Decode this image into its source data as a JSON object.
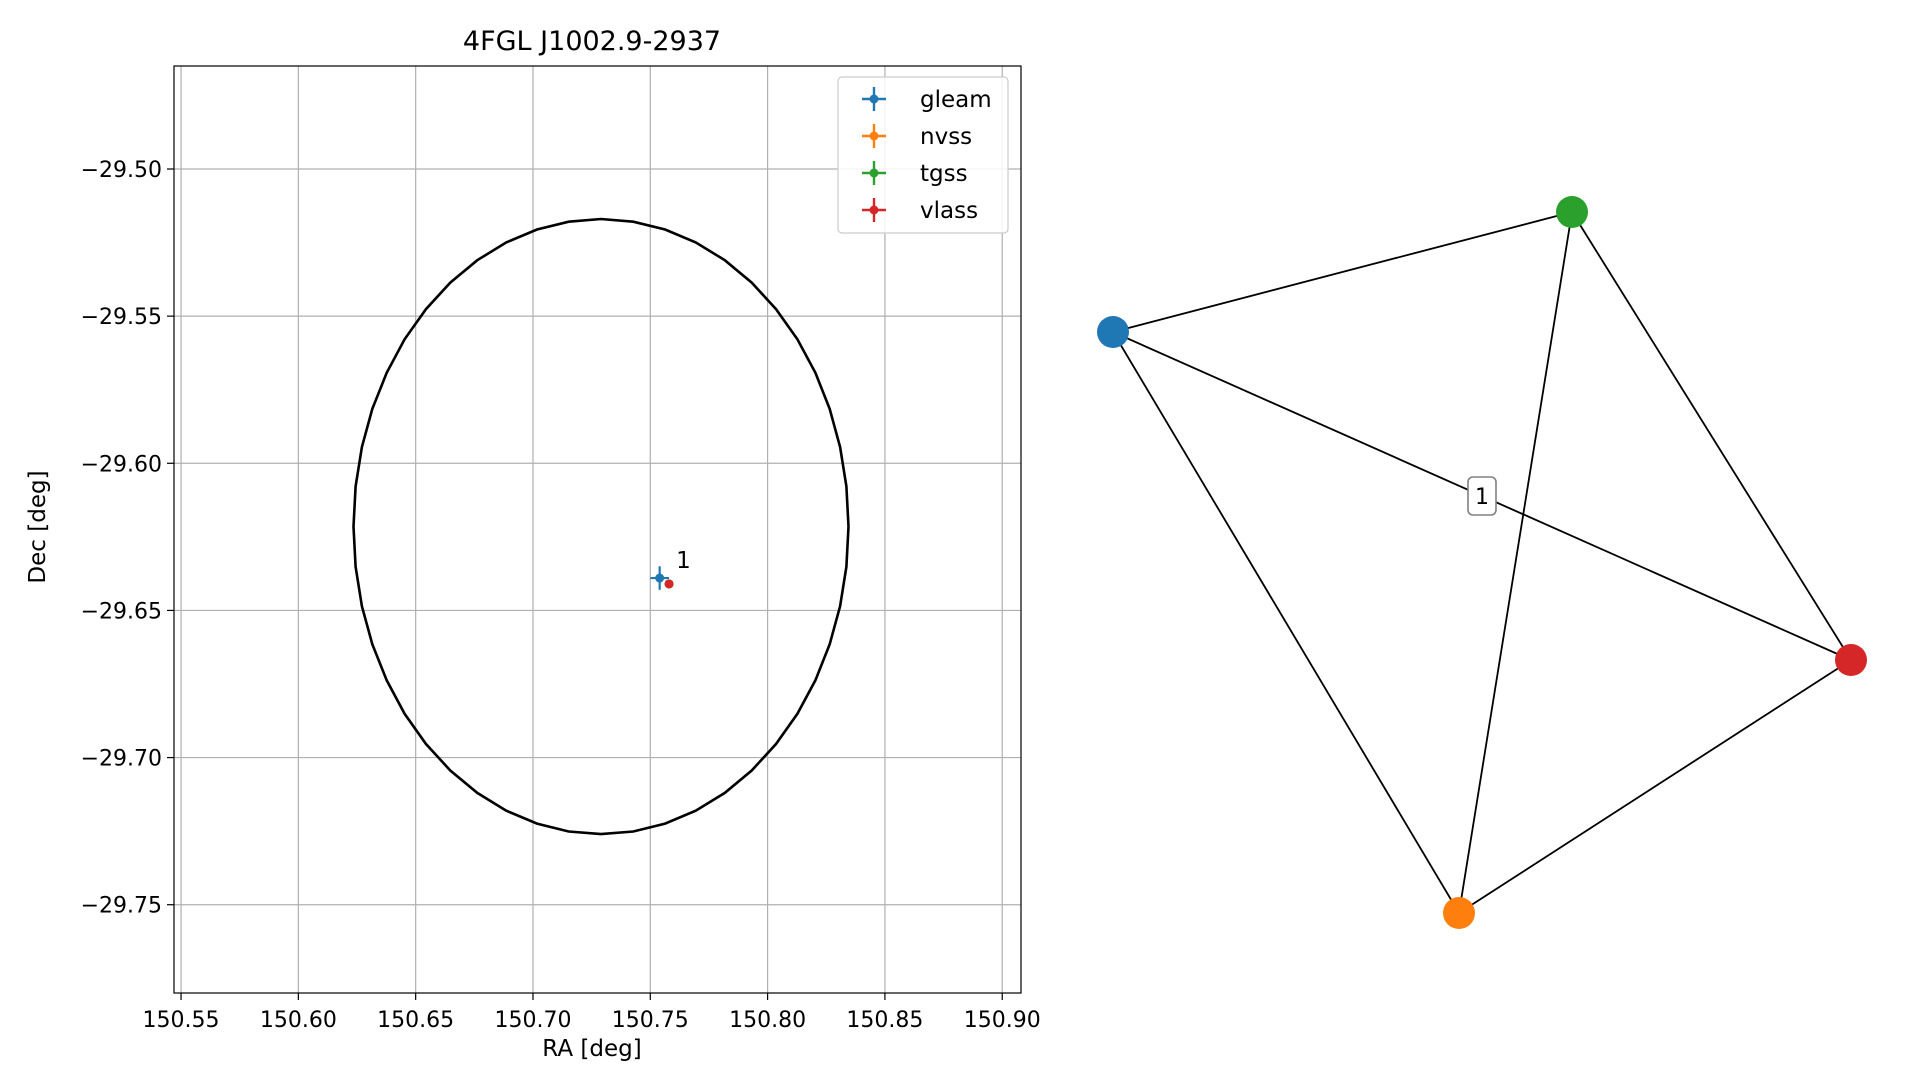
{
  "chart_data": [
    {
      "type": "scatter",
      "title": "4FGL J1002.9-2937",
      "xlabel": "RA [deg]",
      "ylabel": "Dec [deg]",
      "xlim": [
        150.547,
        150.908
      ],
      "ylim": [
        -29.78,
        -29.465
      ],
      "xticks": [
        150.55,
        150.6,
        150.65,
        150.7,
        150.75,
        150.8,
        150.85,
        150.9
      ],
      "xtick_labels": [
        "150.55",
        "150.60",
        "150.65",
        "150.70",
        "150.75",
        "150.80",
        "150.85",
        "150.90"
      ],
      "yticks": [
        -29.5,
        -29.55,
        -29.6,
        -29.65,
        -29.7,
        -29.75
      ],
      "ytick_labels": [
        "−29.50",
        "−29.55",
        "−29.60",
        "−29.65",
        "−29.70",
        "−29.75"
      ],
      "grid": true,
      "legend_position": "top-right",
      "ellipse": {
        "center": [
          150.729,
          -29.6215
        ],
        "ra_radius": 0.1055,
        "dec_radius": 0.1045,
        "color": "#000000"
      },
      "series": [
        {
          "name": "gleam",
          "color": "#1f77b4",
          "x": [
            150.754
          ],
          "y": [
            -29.639
          ],
          "xerr": [
            0.004
          ],
          "yerr": [
            0.004
          ]
        },
        {
          "name": "nvss",
          "color": "#ff7f0e",
          "x": [
            150.758
          ],
          "y": [
            -29.641
          ],
          "xerr": [
            0.0005
          ],
          "yerr": [
            0.0005
          ]
        },
        {
          "name": "tgss",
          "color": "#2ca02c",
          "x": [
            150.758
          ],
          "y": [
            -29.641
          ],
          "xerr": [
            0.0005
          ],
          "yerr": [
            0.0005
          ]
        },
        {
          "name": "vlass",
          "color": "#d62728",
          "x": [
            150.758
          ],
          "y": [
            -29.641
          ],
          "xerr": [
            0.0003
          ],
          "yerr": [
            0.0003
          ]
        }
      ],
      "annotations": [
        {
          "text": "1",
          "x": 150.761,
          "y": -29.6355
        }
      ]
    },
    {
      "type": "network",
      "nodes": [
        {
          "id": "gleam",
          "color": "#1f77b4"
        },
        {
          "id": "nvss",
          "color": "#ff7f0e"
        },
        {
          "id": "tgss",
          "color": "#2ca02c"
        },
        {
          "id": "vlass",
          "color": "#d62728"
        }
      ],
      "edges": [
        [
          "gleam",
          "tgss"
        ],
        [
          "gleam",
          "nvss"
        ],
        [
          "gleam",
          "vlass"
        ],
        [
          "tgss",
          "nvss"
        ],
        [
          "tgss",
          "vlass"
        ],
        [
          "nvss",
          "vlass"
        ]
      ],
      "edge_label": "1"
    }
  ]
}
